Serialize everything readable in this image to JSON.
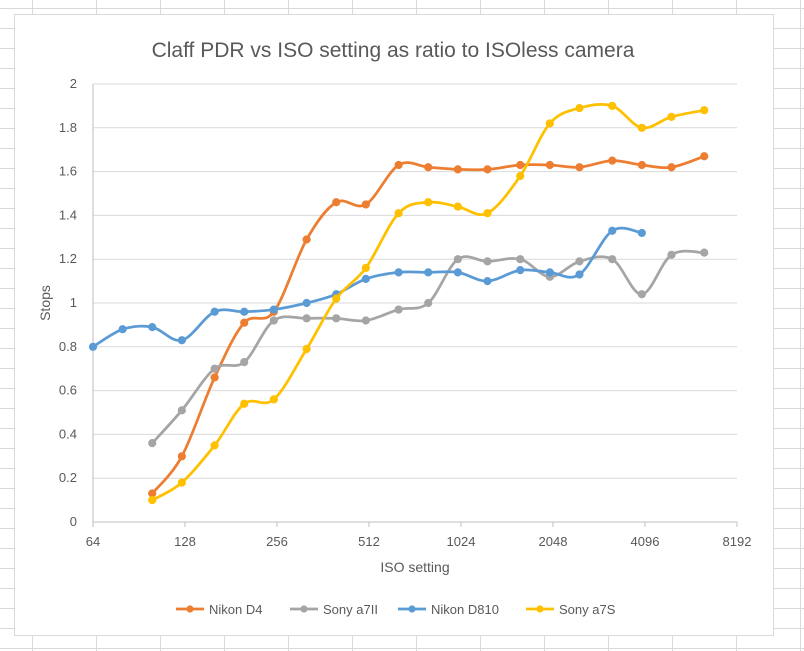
{
  "chart_data": {
    "type": "line",
    "title": "Claff PDR vs ISO setting as ratio to ISOless camera",
    "xlabel": "ISO setting",
    "ylabel": "Stops",
    "x_scale": "log2",
    "xlim": [
      64,
      8192
    ],
    "ylim": [
      0,
      2
    ],
    "x_ticks": [
      64,
      128,
      256,
      512,
      1024,
      2048,
      4096,
      8192
    ],
    "x_tick_labels": [
      "64",
      "128",
      "256",
      "512",
      "1024",
      "2048",
      "4096",
      "8192"
    ],
    "y_ticks": [
      0,
      0.2,
      0.4,
      0.6,
      0.8,
      1,
      1.2,
      1.4,
      1.6,
      1.8,
      2
    ],
    "y_tick_labels": [
      "0",
      "0.2",
      "0.4",
      "0.6",
      "0.8",
      "1",
      "1.2",
      "1.4",
      "1.6",
      "1.8",
      "2"
    ],
    "grid": true,
    "legend_position": "bottom",
    "smooth_lines": true,
    "series": [
      {
        "name": "Nikon D4",
        "color": "#ed7d31",
        "points": [
          [
            100,
            0.13
          ],
          [
            125,
            0.3
          ],
          [
            160,
            0.66
          ],
          [
            200,
            0.91
          ],
          [
            250,
            0.96
          ],
          [
            320,
            1.29
          ],
          [
            400,
            1.46
          ],
          [
            500,
            1.45
          ],
          [
            640,
            1.63
          ],
          [
            800,
            1.62
          ],
          [
            1000,
            1.61
          ],
          [
            1250,
            1.61
          ],
          [
            1600,
            1.63
          ],
          [
            2000,
            1.63
          ],
          [
            2500,
            1.62
          ],
          [
            3200,
            1.65
          ],
          [
            4000,
            1.63
          ],
          [
            5000,
            1.62
          ],
          [
            6400,
            1.67
          ]
        ]
      },
      {
        "name": "Sony a7II",
        "color": "#a5a5a5",
        "points": [
          [
            100,
            0.36
          ],
          [
            125,
            0.51
          ],
          [
            160,
            0.7
          ],
          [
            200,
            0.73
          ],
          [
            250,
            0.92
          ],
          [
            320,
            0.93
          ],
          [
            400,
            0.93
          ],
          [
            500,
            0.92
          ],
          [
            640,
            0.97
          ],
          [
            800,
            1.0
          ],
          [
            1000,
            1.2
          ],
          [
            1250,
            1.19
          ],
          [
            1600,
            1.2
          ],
          [
            2000,
            1.12
          ],
          [
            2500,
            1.19
          ],
          [
            3200,
            1.2
          ],
          [
            4000,
            1.04
          ],
          [
            5000,
            1.22
          ],
          [
            6400,
            1.23
          ]
        ]
      },
      {
        "name": "Nikon D810",
        "color": "#5b9bd5",
        "points": [
          [
            64,
            0.8
          ],
          [
            80,
            0.88
          ],
          [
            100,
            0.89
          ],
          [
            125,
            0.83
          ],
          [
            160,
            0.96
          ],
          [
            200,
            0.96
          ],
          [
            250,
            0.97
          ],
          [
            320,
            1.0
          ],
          [
            400,
            1.04
          ],
          [
            500,
            1.11
          ],
          [
            640,
            1.14
          ],
          [
            800,
            1.14
          ],
          [
            1000,
            1.14
          ],
          [
            1250,
            1.1
          ],
          [
            1600,
            1.15
          ],
          [
            2000,
            1.14
          ],
          [
            2500,
            1.13
          ],
          [
            3200,
            1.33
          ],
          [
            4000,
            1.32
          ]
        ]
      },
      {
        "name": "Sony a7S",
        "color": "#ffc000",
        "points": [
          [
            100,
            0.1
          ],
          [
            125,
            0.18
          ],
          [
            160,
            0.35
          ],
          [
            200,
            0.54
          ],
          [
            250,
            0.56
          ],
          [
            320,
            0.79
          ],
          [
            400,
            1.02
          ],
          [
            500,
            1.16
          ],
          [
            640,
            1.41
          ],
          [
            800,
            1.46
          ],
          [
            1000,
            1.44
          ],
          [
            1250,
            1.41
          ],
          [
            1600,
            1.58
          ],
          [
            2000,
            1.82
          ],
          [
            2500,
            1.89
          ],
          [
            3200,
            1.9
          ],
          [
            4000,
            1.8
          ],
          [
            5000,
            1.85
          ],
          [
            6400,
            1.88
          ]
        ]
      }
    ]
  }
}
